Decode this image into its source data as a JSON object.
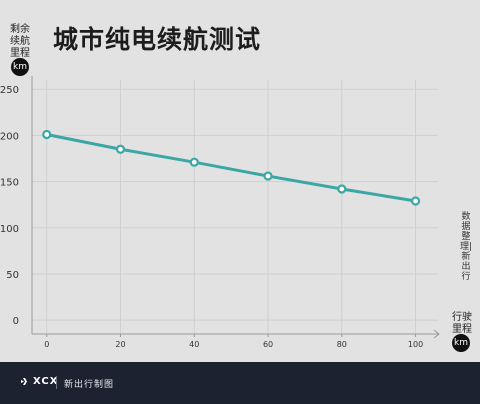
{
  "header": {
    "title": "城市纯电续航测试"
  },
  "y_axis": {
    "label_lines": [
      "剩余",
      "续航",
      "里程"
    ],
    "unit": "km"
  },
  "x_axis": {
    "label_lines": [
      "行驶",
      "里程"
    ],
    "unit": "km"
  },
  "side_note": "数据整理|新出行",
  "footer": {
    "brand": "XCX",
    "caption": "新出行制图"
  },
  "colors": {
    "series": "#3aa7a5",
    "grid": "#cfcfcf",
    "background": "#e2e2e2",
    "footer": "#1d2230"
  },
  "chart_data": {
    "type": "line",
    "title": "城市纯电续航测试",
    "xlabel": "行驶里程",
    "ylabel": "剩余续航里程",
    "x": [
      0,
      20,
      40,
      60,
      80,
      100
    ],
    "series": [
      {
        "values": [
          201,
          185,
          171,
          156,
          142,
          129
        ]
      }
    ],
    "x_ticks": [
      0,
      20,
      40,
      60,
      80,
      100
    ],
    "y_ticks": [
      0,
      50,
      100,
      150,
      200,
      250
    ],
    "xlim": [
      -4,
      105
    ],
    "ylim": [
      -15,
      260
    ],
    "grid": true,
    "legend": "none"
  }
}
